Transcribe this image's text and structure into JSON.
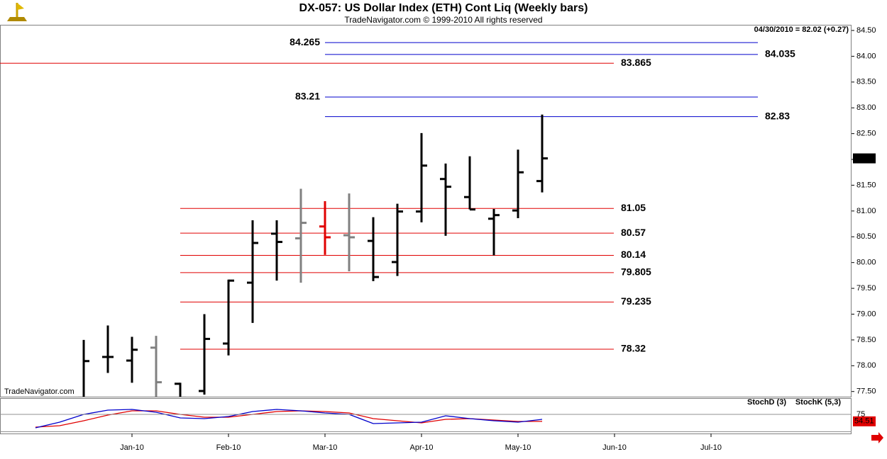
{
  "chart_data": [
    {
      "type": "ohlc",
      "title": "DX-057:  US Dollar Index (ETH) Cont Liq  (Weekly bars)",
      "subtitle": "TradeNavigator.com © 1999-2010 All rights reserved",
      "annotation": "04/30/2010 = 82.02 (+0.27)",
      "watermark": "TradeNavigator.com",
      "categories": [
        null,
        null,
        null,
        null,
        null,
        "Jan-10",
        null,
        null,
        null,
        "Feb-10",
        null,
        null,
        null,
        "Mar-10",
        null,
        null,
        null,
        "Apr-10",
        null,
        null,
        null,
        "May-10",
        null,
        null,
        null,
        "Jun-10",
        null,
        null,
        null,
        "Jul-10",
        null,
        null,
        null,
        null,
        null
      ],
      "open": [
        null,
        null,
        null,
        77.38,
        78.17,
        78.1,
        78.35,
        77.65,
        77.51,
        78.43,
        79.61,
        80.56,
        80.47,
        80.7,
        80.53,
        80.42,
        80.01,
        80.99,
        81.62,
        81.27,
        80.85,
        81.01,
        81.58,
        null,
        null,
        null,
        null,
        null,
        null,
        null,
        null,
        null,
        null,
        null,
        null
      ],
      "high": [
        null,
        null,
        null,
        78.5,
        78.78,
        78.56,
        78.58,
        77.67,
        79.0,
        79.67,
        80.82,
        80.82,
        81.43,
        81.19,
        81.34,
        80.88,
        81.14,
        82.51,
        81.92,
        82.06,
        81.04,
        82.19,
        82.87,
        null,
        null,
        null,
        null,
        null,
        null,
        null,
        null,
        null,
        null,
        null,
        null
      ],
      "low": [
        null,
        null,
        null,
        77.3,
        77.86,
        77.67,
        77.3,
        77.3,
        77.44,
        78.2,
        78.83,
        79.65,
        79.61,
        80.15,
        79.83,
        79.64,
        79.74,
        80.78,
        80.52,
        81.03,
        80.14,
        80.86,
        81.36,
        null,
        null,
        null,
        null,
        null,
        null,
        null,
        null,
        null,
        null,
        null,
        null
      ],
      "close": [
        null,
        null,
        null,
        78.09,
        78.17,
        78.31,
        77.68,
        77.38,
        78.52,
        79.65,
        80.38,
        80.4,
        80.77,
        80.49,
        80.49,
        79.72,
        80.99,
        81.88,
        81.47,
        81.03,
        80.92,
        81.75,
        82.02,
        null,
        null,
        null,
        null,
        null,
        null,
        null,
        null,
        null,
        null,
        null,
        null
      ],
      "colors": [
        null,
        null,
        null,
        "#000000",
        "#000000",
        "#000000",
        "#808080",
        "#000000",
        "#000000",
        "#000000",
        "#000000",
        "#000000",
        "#808080",
        "#e00000",
        "#808080",
        "#000000",
        "#000000",
        "#000000",
        "#000000",
        "#000000",
        "#000000",
        "#000000",
        "#000000",
        null,
        null,
        null,
        null,
        null,
        null,
        null,
        null,
        null,
        null,
        null,
        null
      ],
      "ylim": [
        77.4,
        84.61
      ],
      "yticks": [
        {
          "value": 77.5,
          "label": "77.50"
        },
        {
          "value": 78,
          "label": "78.00"
        },
        {
          "value": 78.5,
          "label": "78.50"
        },
        {
          "value": 79,
          "label": "79.00"
        },
        {
          "value": 79.5,
          "label": "79.50"
        },
        {
          "value": 80,
          "label": "80.00"
        },
        {
          "value": 80.5,
          "label": "80.50"
        },
        {
          "value": 81,
          "label": "81.00"
        },
        {
          "value": 81.5,
          "label": "81.50"
        },
        {
          "value": 82,
          "label": "82.00"
        },
        {
          "value": 82.5,
          "label": "82.50"
        },
        {
          "value": 83,
          "label": "83.00"
        },
        {
          "value": 83.5,
          "label": "83.50"
        },
        {
          "value": 84,
          "label": "84.00"
        },
        {
          "value": 84.5,
          "label": "84.50"
        }
      ],
      "levels": [
        {
          "value": 84.265,
          "color": "#0000cc"
        },
        {
          "value": 84.035,
          "color": "#0000cc"
        },
        {
          "value": 83.865,
          "color": "#e00000"
        },
        {
          "value": 83.21,
          "color": "#0000cc"
        },
        {
          "value": 82.83,
          "color": "#0000cc"
        },
        {
          "value": 81.05,
          "color": "#e00000"
        },
        {
          "value": 80.57,
          "color": "#e00000"
        },
        {
          "value": 80.14,
          "color": "#e00000"
        },
        {
          "value": 79.805,
          "color": "#e00000"
        },
        {
          "value": 79.235,
          "color": "#e00000"
        },
        {
          "value": 78.32,
          "color": "#e00000"
        }
      ]
    },
    {
      "type": "line",
      "series": [
        {
          "name": "StochD (3)",
          "color": "#e00000",
          "values": [
            null,
            37.5,
            41.7,
            56.3,
            72.9,
            85.4,
            85.4,
            75,
            66.7,
            66.7,
            75,
            83.3,
            85.4,
            83.3,
            79.2,
            62.5,
            56.3,
            50,
            60.4,
            62.5,
            58.3,
            54.2,
            54.51,
            null,
            null,
            null,
            null,
            null,
            null,
            null,
            null,
            null,
            null,
            null,
            null
          ]
        },
        {
          "name": "StochK (5,3)",
          "color": "#0000cc",
          "values": [
            null,
            35.4,
            52.1,
            75,
            87.5,
            89.6,
            81.3,
            64.6,
            62.5,
            68.8,
            83.3,
            89.6,
            85.4,
            79.2,
            75,
            47.9,
            50,
            52.1,
            70.8,
            62.5,
            56.3,
            52.1,
            60.4,
            null,
            null,
            null,
            null,
            null,
            null,
            null,
            null,
            null,
            null,
            null,
            null
          ]
        }
      ],
      "ylim": [
        18.75,
        120.83
      ],
      "yticks": [
        75
      ]
    }
  ]
}
